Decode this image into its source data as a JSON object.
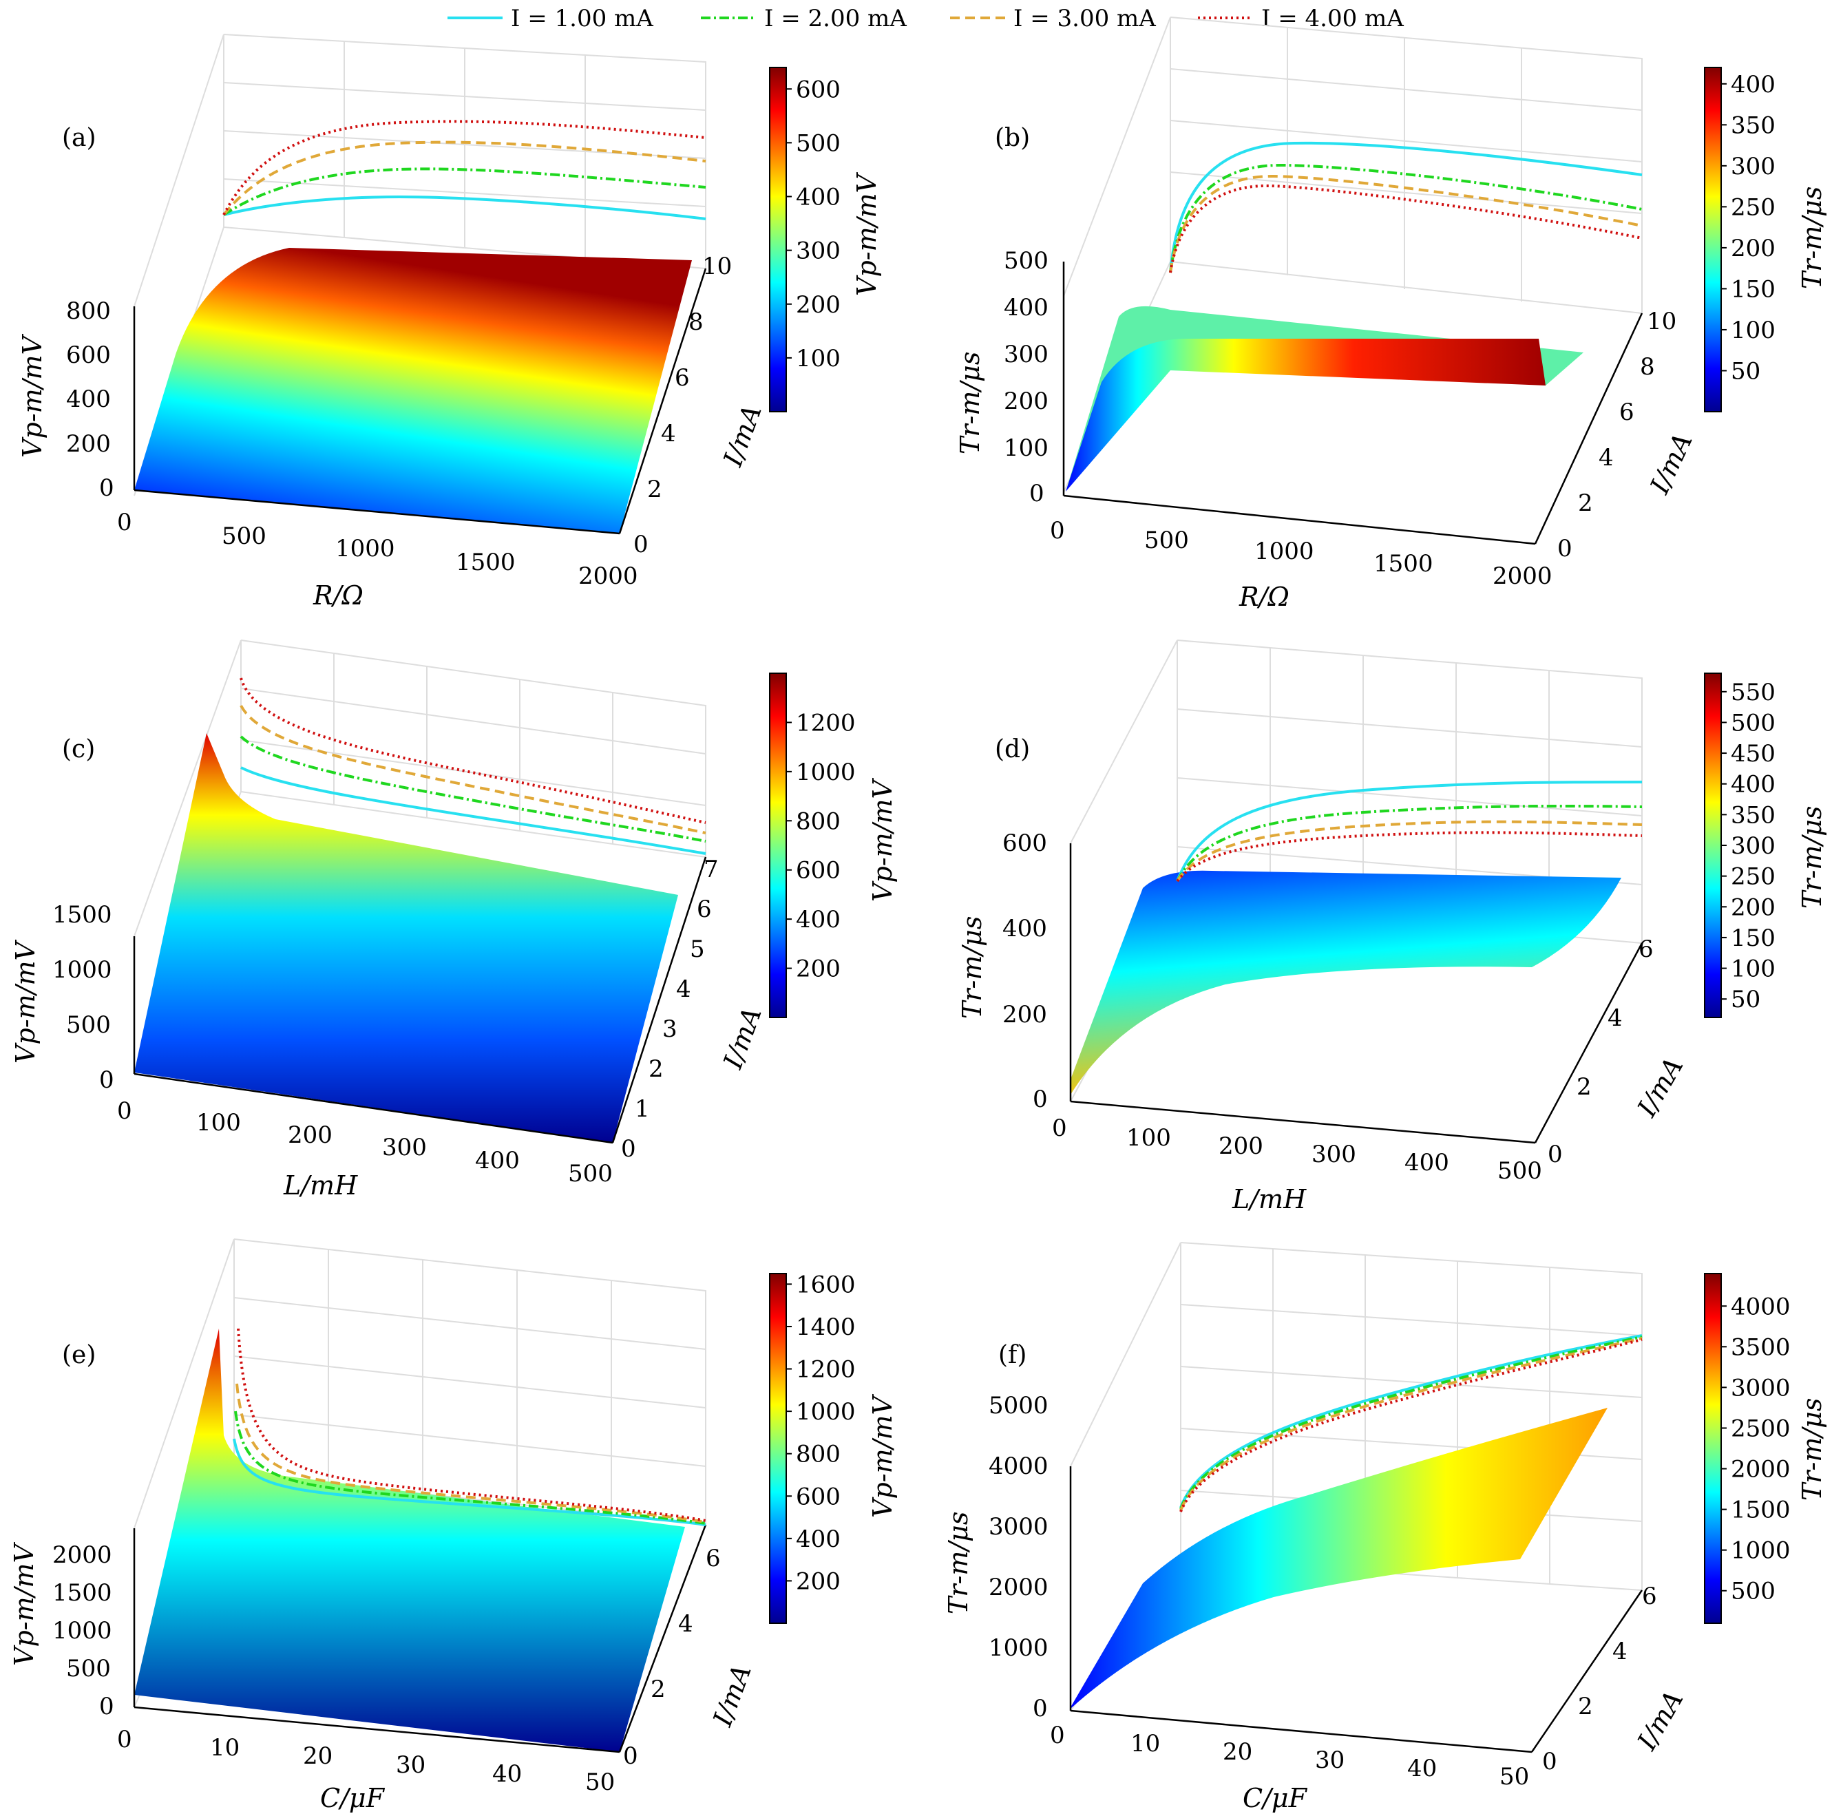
{
  "legend": {
    "entries": [
      {
        "label": "I = 1.00 mA",
        "color": "#27e0f0",
        "dash": "solid"
      },
      {
        "label": "I = 2.00 mA",
        "color": "#1fd71f",
        "dash": "dashdot"
      },
      {
        "label": "I = 3.00 mA",
        "color": "#e0a838",
        "dash": "dashed"
      },
      {
        "label": "I = 4.00 mA",
        "color": "#d01010",
        "dash": "dotted"
      }
    ]
  },
  "chart_data": [
    {
      "panel": "(a)",
      "type": "surface",
      "xlabel": "R/Ω",
      "ylabel": "I/mA",
      "zlabel": "Vp-m/mV",
      "xticks": [
        "0",
        "500",
        "1000",
        "1500",
        "2000"
      ],
      "yticks": [
        "0",
        "2",
        "4",
        "6",
        "8",
        "10"
      ],
      "zticks": [
        "0",
        "200",
        "400",
        "600",
        "800"
      ],
      "colorbar": {
        "label": "Vp-m/mV",
        "ticks": [
          "100",
          "200",
          "300",
          "400",
          "500",
          "600"
        ],
        "range": [
          0,
          640
        ]
      },
      "series": [
        {
          "name": "I = 1.00 mA",
          "values": [
            0,
            120,
            150,
            155,
            150,
            140,
            130,
            115
          ]
        },
        {
          "name": "I = 2.00 mA",
          "values": [
            0,
            180,
            230,
            240,
            235,
            225,
            210,
            195
          ]
        },
        {
          "name": "I = 3.00 mA",
          "values": [
            0,
            230,
            300,
            315,
            310,
            300,
            285,
            270
          ]
        },
        {
          "name": "I = 4.00 mA",
          "values": [
            0,
            280,
            360,
            375,
            372,
            365,
            350,
            335
          ]
        }
      ]
    },
    {
      "panel": "(b)",
      "type": "surface",
      "xlabel": "R/Ω",
      "ylabel": "I/mA",
      "zlabel": "Tr-m/μs",
      "xticks": [
        "0",
        "500",
        "1000",
        "1500",
        "2000"
      ],
      "yticks": [
        "0",
        "2",
        "4",
        "6",
        "8",
        "10"
      ],
      "zticks": [
        "0",
        "100",
        "200",
        "300",
        "400",
        "500"
      ],
      "colorbar": {
        "label": "Tr-m/μs",
        "ticks": [
          "50",
          "100",
          "150",
          "200",
          "250",
          "300",
          "350",
          "400"
        ],
        "range": [
          0,
          420
        ]
      },
      "series": [
        {
          "name": "I = 1.00 mA",
          "values": [
            0,
            330,
            380,
            375,
            360,
            345,
            330,
            315
          ]
        },
        {
          "name": "I = 2.00 mA",
          "values": [
            0,
            290,
            320,
            310,
            295,
            280,
            265,
            250
          ]
        },
        {
          "name": "I = 3.00 mA",
          "values": [
            0,
            275,
            300,
            290,
            275,
            262,
            248,
            235
          ]
        },
        {
          "name": "I = 4.00 mA",
          "values": [
            0,
            265,
            285,
            275,
            262,
            248,
            235,
            222
          ]
        }
      ]
    },
    {
      "panel": "(c)",
      "type": "surface",
      "xlabel": "L/mH",
      "ylabel": "I/mA",
      "zlabel": "Vp-m/mV",
      "xticks": [
        "0",
        "100",
        "200",
        "300",
        "400",
        "500"
      ],
      "yticks": [
        "0",
        "1",
        "2",
        "3",
        "4",
        "5",
        "6",
        "7"
      ],
      "zticks": [
        "0",
        "500",
        "1000",
        "1500"
      ],
      "colorbar": {
        "label": "Vp-m/mV",
        "ticks": [
          "200",
          "400",
          "600",
          "800",
          "1000",
          "1200"
        ],
        "range": [
          0,
          1400
        ]
      },
      "series": [
        {
          "name": "I = 1.00 mA",
          "values": [
            900,
            780,
            700,
            640,
            590,
            540,
            500,
            460
          ]
        },
        {
          "name": "I = 2.00 mA",
          "values": [
            1050,
            880,
            790,
            720,
            665,
            615,
            570,
            525
          ]
        },
        {
          "name": "I = 3.00 mA",
          "values": [
            1200,
            960,
            860,
            790,
            730,
            675,
            625,
            580
          ]
        },
        {
          "name": "I = 4.00 mA",
          "values": [
            1350,
            1040,
            930,
            850,
            785,
            725,
            670,
            620
          ]
        }
      ]
    },
    {
      "panel": "(d)",
      "type": "surface",
      "xlabel": "L/mH",
      "ylabel": "I/mA",
      "zlabel": "Tr-m/μs",
      "xticks": [
        "0",
        "100",
        "200",
        "300",
        "400",
        "500"
      ],
      "yticks": [
        "0",
        "2",
        "4",
        "6"
      ],
      "zticks": [
        "0",
        "200",
        "400",
        "600"
      ],
      "colorbar": {
        "label": "Tr-m/μs",
        "ticks": [
          "50",
          "100",
          "150",
          "200",
          "250",
          "300",
          "350",
          "400",
          "450",
          "500",
          "550"
        ],
        "range": [
          20,
          580
        ]
      },
      "series": [
        {
          "name": "I = 1.00 mA",
          "values": [
            0,
            400,
            470,
            505,
            525,
            535,
            540,
            545
          ]
        },
        {
          "name": "I = 2.00 mA",
          "values": [
            0,
            380,
            440,
            465,
            478,
            485,
            488,
            490
          ]
        },
        {
          "name": "I = 3.00 mA",
          "values": [
            0,
            365,
            415,
            432,
            440,
            445,
            448,
            450
          ]
        },
        {
          "name": "I = 4.00 mA",
          "values": [
            0,
            355,
            395,
            408,
            414,
            418,
            420,
            422
          ]
        }
      ]
    },
    {
      "panel": "(e)",
      "type": "surface",
      "xlabel": "C/μF",
      "ylabel": "I/mA",
      "zlabel": "Vp-m/mV",
      "xticks": [
        "0",
        "10",
        "20",
        "30",
        "40",
        "50"
      ],
      "yticks": [
        "0",
        "2",
        "4",
        "6"
      ],
      "zticks": [
        "0",
        "500",
        "1000",
        "1500",
        "2000"
      ],
      "colorbar": {
        "label": "Vp-m/mV",
        "ticks": [
          "200",
          "400",
          "600",
          "800",
          "1000",
          "1200",
          "1400",
          "1600"
        ],
        "range": [
          0,
          1650
        ]
      },
      "series": [
        {
          "name": "I = 1.00 mA",
          "values": [
            1000,
            520,
            430,
            390,
            360,
            335,
            315,
            295
          ]
        },
        {
          "name": "I = 2.00 mA",
          "values": [
            1200,
            560,
            450,
            400,
            368,
            340,
            318,
            298
          ]
        },
        {
          "name": "I = 3.00 mA",
          "values": [
            1400,
            600,
            470,
            412,
            375,
            345,
            321,
            300
          ]
        },
        {
          "name": "I = 4.00 mA",
          "values": [
            1600,
            640,
            490,
            425,
            382,
            350,
            324,
            302
          ]
        }
      ]
    },
    {
      "panel": "(f)",
      "type": "surface",
      "xlabel": "C/μF",
      "ylabel": "I/mA",
      "zlabel": "Tr-m/μs",
      "xticks": [
        "0",
        "10",
        "20",
        "30",
        "40",
        "50"
      ],
      "yticks": [
        "0",
        "2",
        "4",
        "6"
      ],
      "zticks": [
        "0",
        "1000",
        "2000",
        "3000",
        "4000",
        "5000"
      ],
      "colorbar": {
        "label": "Tr-m/μs",
        "ticks": [
          "500",
          "1000",
          "1500",
          "2000",
          "2500",
          "3000",
          "3500",
          "4000"
        ],
        "range": [
          100,
          4400
        ]
      },
      "series": [
        {
          "name": "I = 1.00 mA",
          "values": [
            0,
            1700,
            2300,
            2750,
            3100,
            3400,
            3650,
            3880
          ]
        },
        {
          "name": "I = 2.00 mA",
          "values": [
            0,
            1680,
            2280,
            2720,
            3080,
            3380,
            3630,
            3860
          ]
        },
        {
          "name": "I = 3.00 mA",
          "values": [
            0,
            1660,
            2250,
            2700,
            3060,
            3360,
            3610,
            3840
          ]
        },
        {
          "name": "I = 4.00 mA",
          "values": [
            0,
            1640,
            2230,
            2680,
            3040,
            3340,
            3590,
            3820
          ]
        }
      ]
    }
  ]
}
